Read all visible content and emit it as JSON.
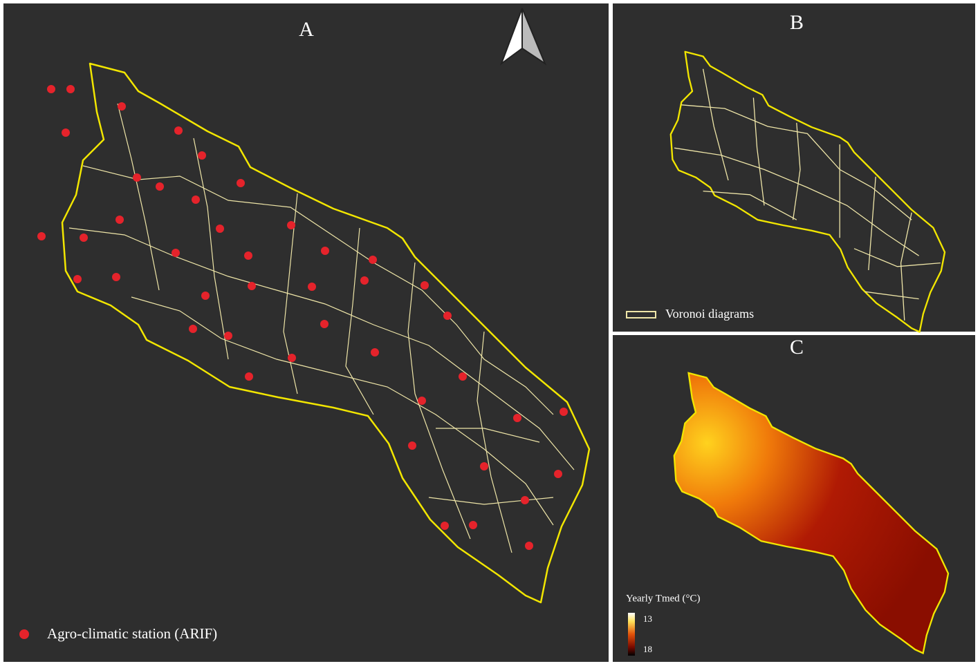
{
  "panels": {
    "a": {
      "label": "A",
      "legend": "Agro-climatic station (ARIF)"
    },
    "b": {
      "label": "B",
      "legend": "Voronoi diagrams"
    },
    "c": {
      "label": "C",
      "legend_title": "Yearly Tmed (°C)",
      "colorbar_ticks": [
        13,
        18
      ]
    }
  }
}
